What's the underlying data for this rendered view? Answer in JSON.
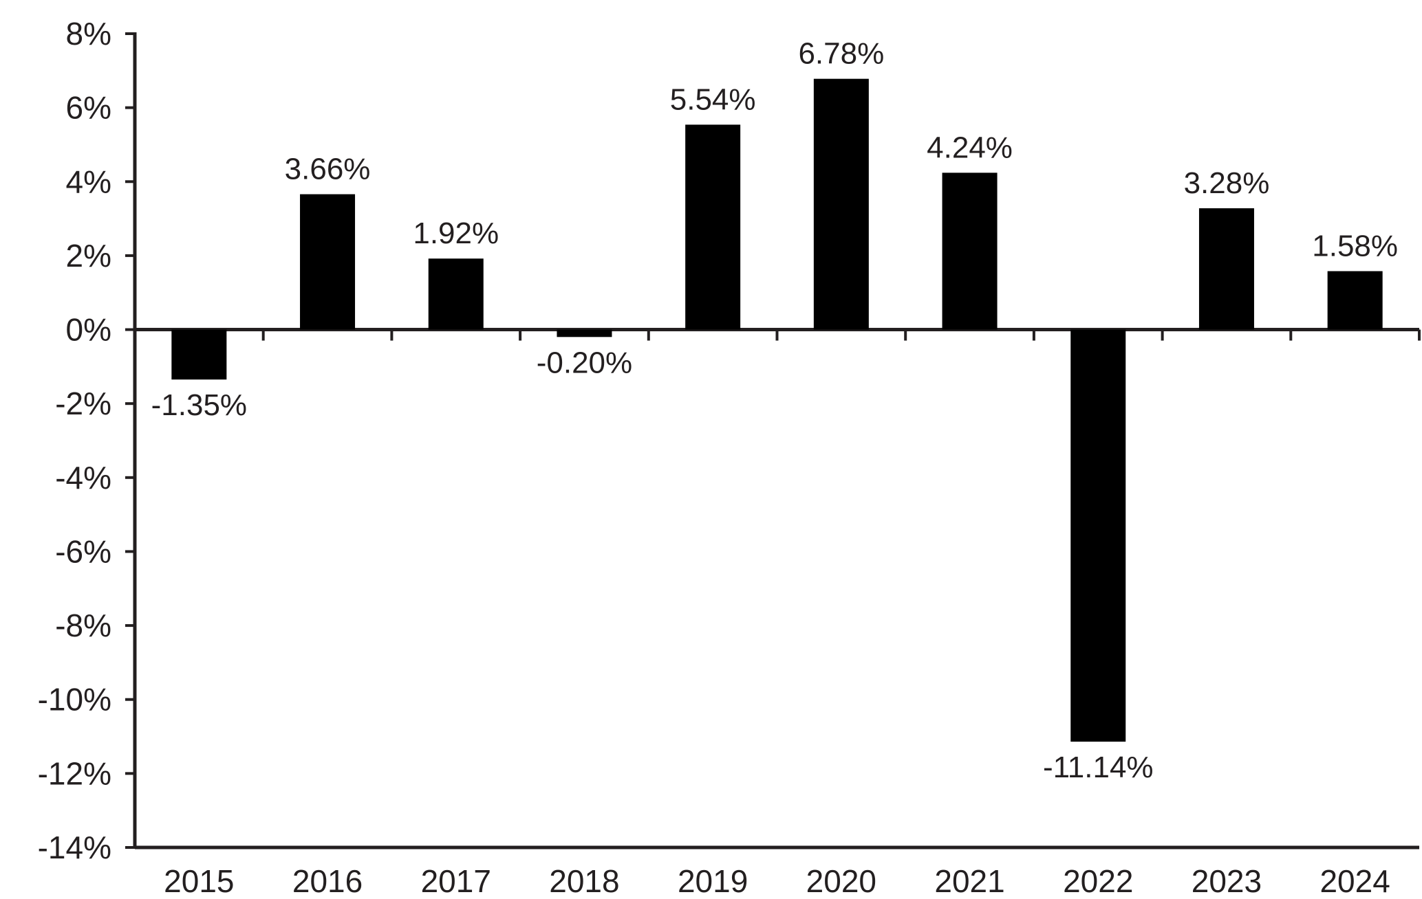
{
  "chart_data": {
    "type": "bar",
    "title": "",
    "xlabel": "",
    "ylabel": "",
    "categories": [
      "2015",
      "2016",
      "2017",
      "2018",
      "2019",
      "2020",
      "2021",
      "2022",
      "2023",
      "2024"
    ],
    "values": [
      -1.35,
      3.66,
      1.92,
      -0.2,
      5.54,
      6.78,
      4.24,
      -11.14,
      3.28,
      1.58
    ],
    "data_labels": [
      "-1.35%",
      "3.66%",
      "1.92%",
      "-0.20%",
      "5.54%",
      "6.78%",
      "4.24%",
      "-11.14%",
      "3.28%",
      "1.58%"
    ],
    "ylim": [
      -14,
      8
    ],
    "yticks": [
      8,
      6,
      4,
      2,
      0,
      -2,
      -4,
      -6,
      -8,
      -10,
      -12,
      -14
    ],
    "ytick_labels": [
      "8%",
      "6%",
      "4%",
      "2%",
      "0%",
      "-2%",
      "-4%",
      "-6%",
      "-8%",
      "-10%",
      "-12%",
      "-14%"
    ],
    "grid": false,
    "legend": "none",
    "colors": {
      "bar": "#000000",
      "axis": "#231f20",
      "text": "#231f20"
    }
  }
}
